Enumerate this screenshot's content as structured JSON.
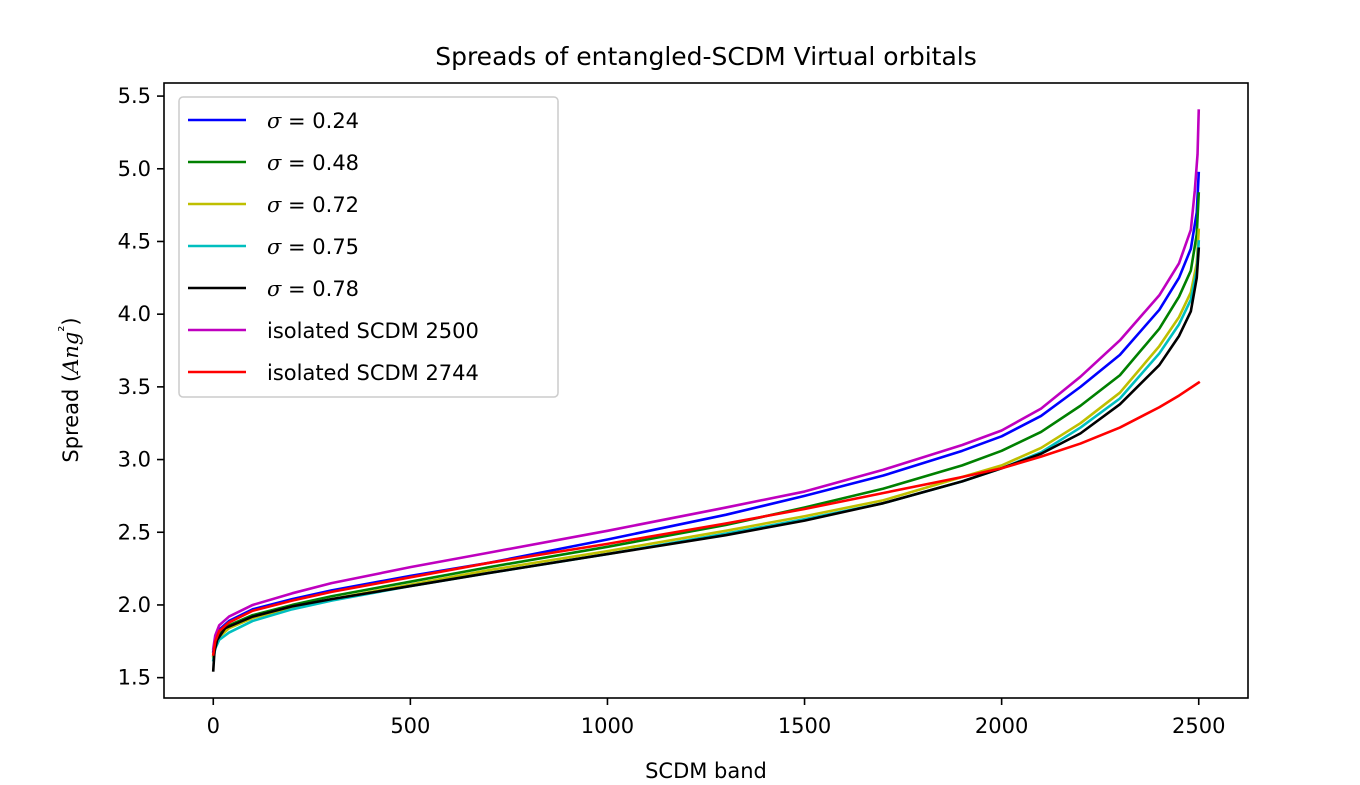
{
  "chart_data": {
    "type": "line",
    "title": "Spreads of entangled-SCDM Virtual orbitals",
    "xlabel": "SCDM band",
    "ylabel": "Spread (Ang²)",
    "xlim": [
      -125,
      2625
    ],
    "ylim": [
      1.36,
      5.59
    ],
    "xticks": [
      0,
      500,
      1000,
      1500,
      2000,
      2500
    ],
    "yticks": [
      1.5,
      2.0,
      2.5,
      3.0,
      3.5,
      4.0,
      4.5,
      5.0,
      5.5
    ],
    "grid": false,
    "legend_position": "top-left",
    "series": [
      {
        "name": "σ = 0.24",
        "color": "#0000ff",
        "points": [
          [
            0,
            1.68
          ],
          [
            5,
            1.76
          ],
          [
            15,
            1.83
          ],
          [
            40,
            1.89
          ],
          [
            100,
            1.97
          ],
          [
            200,
            2.04
          ],
          [
            300,
            2.1
          ],
          [
            500,
            2.2
          ],
          [
            700,
            2.29
          ],
          [
            1000,
            2.45
          ],
          [
            1300,
            2.62
          ],
          [
            1500,
            2.75
          ],
          [
            1700,
            2.89
          ],
          [
            1900,
            3.06
          ],
          [
            2000,
            3.16
          ],
          [
            2100,
            3.3
          ],
          [
            2200,
            3.5
          ],
          [
            2300,
            3.72
          ],
          [
            2400,
            4.03
          ],
          [
            2450,
            4.25
          ],
          [
            2480,
            4.45
          ],
          [
            2495,
            4.7
          ],
          [
            2500,
            4.97
          ]
        ]
      },
      {
        "name": "σ = 0.48",
        "color": "#008000",
        "points": [
          [
            0,
            1.65
          ],
          [
            5,
            1.74
          ],
          [
            15,
            1.8
          ],
          [
            40,
            1.86
          ],
          [
            100,
            1.93
          ],
          [
            200,
            2.0
          ],
          [
            300,
            2.06
          ],
          [
            500,
            2.16
          ],
          [
            700,
            2.26
          ],
          [
            1000,
            2.4
          ],
          [
            1300,
            2.55
          ],
          [
            1500,
            2.67
          ],
          [
            1700,
            2.8
          ],
          [
            1900,
            2.96
          ],
          [
            2000,
            3.06
          ],
          [
            2100,
            3.19
          ],
          [
            2200,
            3.37
          ],
          [
            2300,
            3.58
          ],
          [
            2400,
            3.9
          ],
          [
            2450,
            4.12
          ],
          [
            2480,
            4.3
          ],
          [
            2495,
            4.55
          ],
          [
            2500,
            4.83
          ]
        ]
      },
      {
        "name": "σ = 0.72",
        "color": "#bfbf00",
        "points": [
          [
            0,
            1.64
          ],
          [
            5,
            1.72
          ],
          [
            15,
            1.78
          ],
          [
            40,
            1.84
          ],
          [
            100,
            1.91
          ],
          [
            200,
            1.98
          ],
          [
            300,
            2.04
          ],
          [
            500,
            2.14
          ],
          [
            700,
            2.24
          ],
          [
            1000,
            2.37
          ],
          [
            1300,
            2.51
          ],
          [
            1500,
            2.61
          ],
          [
            1700,
            2.72
          ],
          [
            1900,
            2.88
          ],
          [
            2000,
            2.96
          ],
          [
            2100,
            3.08
          ],
          [
            2200,
            3.25
          ],
          [
            2300,
            3.46
          ],
          [
            2400,
            3.78
          ],
          [
            2450,
            3.98
          ],
          [
            2480,
            4.15
          ],
          [
            2495,
            4.35
          ],
          [
            2500,
            4.58
          ]
        ]
      },
      {
        "name": "σ = 0.75",
        "color": "#00bfbf",
        "points": [
          [
            0,
            1.62
          ],
          [
            5,
            1.7
          ],
          [
            15,
            1.76
          ],
          [
            40,
            1.81
          ],
          [
            100,
            1.89
          ],
          [
            200,
            1.97
          ],
          [
            300,
            2.03
          ],
          [
            500,
            2.13
          ],
          [
            700,
            2.22
          ],
          [
            1000,
            2.35
          ],
          [
            1300,
            2.49
          ],
          [
            1500,
            2.59
          ],
          [
            1700,
            2.7
          ],
          [
            1900,
            2.85
          ],
          [
            2000,
            2.94
          ],
          [
            2100,
            3.05
          ],
          [
            2200,
            3.22
          ],
          [
            2300,
            3.42
          ],
          [
            2400,
            3.73
          ],
          [
            2450,
            3.93
          ],
          [
            2480,
            4.1
          ],
          [
            2495,
            4.3
          ],
          [
            2500,
            4.5
          ]
        ]
      },
      {
        "name": "σ = 0.78",
        "color": "#000000",
        "points": [
          [
            0,
            1.55
          ],
          [
            3,
            1.68
          ],
          [
            10,
            1.76
          ],
          [
            30,
            1.84
          ],
          [
            100,
            1.92
          ],
          [
            200,
            1.99
          ],
          [
            300,
            2.04
          ],
          [
            500,
            2.13
          ],
          [
            700,
            2.22
          ],
          [
            1000,
            2.35
          ],
          [
            1300,
            2.48
          ],
          [
            1500,
            2.58
          ],
          [
            1700,
            2.7
          ],
          [
            1900,
            2.85
          ],
          [
            2000,
            2.94
          ],
          [
            2100,
            3.04
          ],
          [
            2200,
            3.18
          ],
          [
            2300,
            3.38
          ],
          [
            2400,
            3.65
          ],
          [
            2450,
            3.85
          ],
          [
            2480,
            4.02
          ],
          [
            2495,
            4.25
          ],
          [
            2500,
            4.45
          ]
        ]
      },
      {
        "name": "isolated SCDM 2500",
        "color": "#bf00bf",
        "points": [
          [
            0,
            1.7
          ],
          [
            5,
            1.79
          ],
          [
            15,
            1.86
          ],
          [
            40,
            1.92
          ],
          [
            100,
            2.0
          ],
          [
            200,
            2.08
          ],
          [
            300,
            2.15
          ],
          [
            500,
            2.26
          ],
          [
            700,
            2.36
          ],
          [
            1000,
            2.51
          ],
          [
            1300,
            2.67
          ],
          [
            1500,
            2.78
          ],
          [
            1700,
            2.93
          ],
          [
            1900,
            3.1
          ],
          [
            2000,
            3.2
          ],
          [
            2100,
            3.35
          ],
          [
            2200,
            3.57
          ],
          [
            2300,
            3.82
          ],
          [
            2400,
            4.13
          ],
          [
            2450,
            4.35
          ],
          [
            2480,
            4.58
          ],
          [
            2490,
            4.85
          ],
          [
            2497,
            5.1
          ],
          [
            2500,
            5.4
          ]
        ]
      },
      {
        "name": "isolated SCDM 2744",
        "color": "#ff0000",
        "points": [
          [
            0,
            1.66
          ],
          [
            5,
            1.75
          ],
          [
            15,
            1.82
          ],
          [
            40,
            1.88
          ],
          [
            100,
            1.96
          ],
          [
            200,
            2.03
          ],
          [
            300,
            2.09
          ],
          [
            500,
            2.19
          ],
          [
            700,
            2.29
          ],
          [
            1000,
            2.42
          ],
          [
            1300,
            2.56
          ],
          [
            1500,
            2.66
          ],
          [
            1700,
            2.77
          ],
          [
            1900,
            2.88
          ],
          [
            2000,
            2.94
          ],
          [
            2100,
            3.02
          ],
          [
            2200,
            3.11
          ],
          [
            2300,
            3.22
          ],
          [
            2400,
            3.36
          ],
          [
            2450,
            3.44
          ],
          [
            2500,
            3.53
          ]
        ]
      }
    ]
  }
}
